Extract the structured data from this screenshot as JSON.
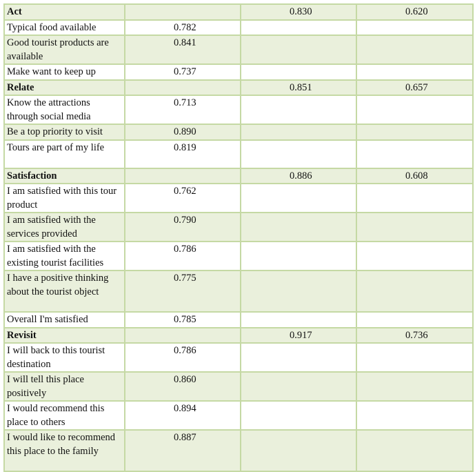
{
  "groups": [
    {
      "name": "Act",
      "composite": "0.830",
      "ave": "0.620",
      "items": [
        {
          "label": "Typical food available",
          "loading": "0.782"
        },
        {
          "label": "Good tourist products are available",
          "loading": "0.841"
        },
        {
          "label": "Make want to keep up",
          "loading": "0.737"
        }
      ]
    },
    {
      "name": "Relate",
      "composite": "0.851",
      "ave": "0.657",
      "items": [
        {
          "label": "Know the attractions through social media",
          "loading": "0.713"
        },
        {
          "label": "Be a top priority to visit",
          "loading": "0.890"
        },
        {
          "label": "Tours are part of my life",
          "loading": "0.819"
        }
      ]
    },
    {
      "name": "Satisfaction",
      "composite": "0.886",
      "ave": "0.608",
      "items": [
        {
          "label": "I am satisfied with this tour product",
          "loading": "0.762"
        },
        {
          "label": "I am satisfied with the services provided",
          "loading": "0.790"
        },
        {
          "label": "I am satisfied with the existing tourist facilities",
          "loading": "0.786"
        },
        {
          "label": "I have a positive thinking about the tourist object",
          "loading": "0.775"
        },
        {
          "label": "Overall I'm satisfied",
          "loading": "0.785"
        }
      ]
    },
    {
      "name": "Revisit",
      "composite": "0.917",
      "ave": "0.736",
      "items": [
        {
          "label": "I will back to this tourist destination",
          "loading": "0.786"
        },
        {
          "label": "I will tell this place positively",
          "loading": "0.860"
        },
        {
          "label": "I would recommend this place to others",
          "loading": "0.894"
        },
        {
          "label": "I would like to recommend this place to the family",
          "loading": "0.887"
        }
      ]
    }
  ]
}
